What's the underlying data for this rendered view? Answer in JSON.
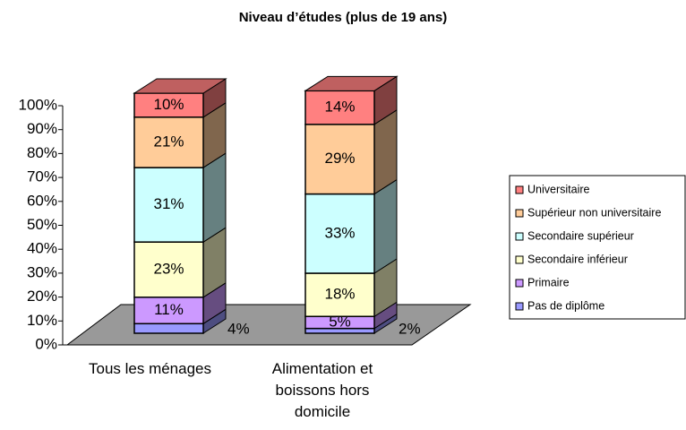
{
  "chart_data": {
    "type": "bar3d_stacked",
    "title": "Niveau d’études (plus de 19 ans)",
    "categories": [
      "Tous les ménages",
      "Alimentation et boissons hors domicile"
    ],
    "series": [
      {
        "name": "Pas de diplôme",
        "color": "#9999ff",
        "values": [
          4,
          2
        ],
        "value_labels": [
          "4%",
          "2%"
        ]
      },
      {
        "name": "Primaire",
        "color": "#cc99ff",
        "values": [
          11,
          5
        ],
        "value_labels": [
          "11%",
          "5%"
        ]
      },
      {
        "name": "Secondaire inférieur",
        "color": "#ffffcc",
        "values": [
          23,
          18
        ],
        "value_labels": [
          "23%",
          "18%"
        ]
      },
      {
        "name": "Secondaire supérieur",
        "color": "#ccffff",
        "values": [
          31,
          33
        ],
        "value_labels": [
          "31%",
          "33%"
        ]
      },
      {
        "name": "Supérieur non universitaire",
        "color": "#ffcc99",
        "values": [
          21,
          29
        ],
        "value_labels": [
          "21%",
          "29%"
        ]
      },
      {
        "name": "Universitaire",
        "color": "#ff8080",
        "values": [
          10,
          14
        ],
        "value_labels": [
          "10%",
          "14%"
        ]
      }
    ],
    "ylim": [
      0,
      100
    ],
    "yticks": [
      {
        "value": 0,
        "label": "0%"
      },
      {
        "value": 10,
        "label": "10%"
      },
      {
        "value": 20,
        "label": "20%"
      },
      {
        "value": 30,
        "label": "30%"
      },
      {
        "value": 40,
        "label": "40%"
      },
      {
        "value": 50,
        "label": "50%"
      },
      {
        "value": 60,
        "label": "60%"
      },
      {
        "value": 70,
        "label": "70%"
      },
      {
        "value": 80,
        "label": "80%"
      },
      {
        "value": 90,
        "label": "90%"
      },
      {
        "value": 100,
        "label": "100%"
      }
    ],
    "legend": "right"
  }
}
